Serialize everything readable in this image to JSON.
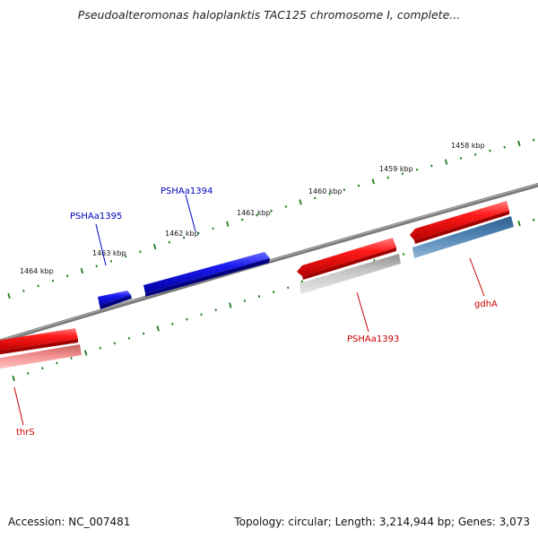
{
  "title": "Pseudoalteromonas haloplanktis TAC125 chromosome I, complete...",
  "scale_labels": [
    "1458 kbp",
    "1459 kbp",
    "1460 kbp",
    "1461 kbp",
    "1462 kbp",
    "1463 kbp",
    "1464 kbp"
  ],
  "genes": [
    {
      "name": "PSHAa1395",
      "strand": "forward",
      "label_color": "#0000bb"
    },
    {
      "name": "PSHAa1394",
      "strand": "forward",
      "label_color": "#0000bb"
    },
    {
      "name": "PSHAa1393",
      "strand": "reverse",
      "label_color": "#cc0000"
    },
    {
      "name": "gdhA",
      "strand": "reverse",
      "label_color": "#cc0000"
    },
    {
      "name": "thrS",
      "strand": "reverse",
      "label_color": "#cc0000"
    }
  ],
  "colors": {
    "forward_gene": "#1a1aee",
    "reverse_gene": "#ee1111",
    "backbone": "#7a7a7a",
    "tick": "#1a7a1a",
    "gene_shadow_grey": "#bdbdbd",
    "gene_shadow_blue": "#4a7fb0",
    "gene_shadow_pink": "#f08a8a"
  },
  "footer": {
    "accession": "Accession: NC_007481",
    "stats": "Topology: circular; Length: 3,214,944 bp; Genes: 3,073"
  }
}
